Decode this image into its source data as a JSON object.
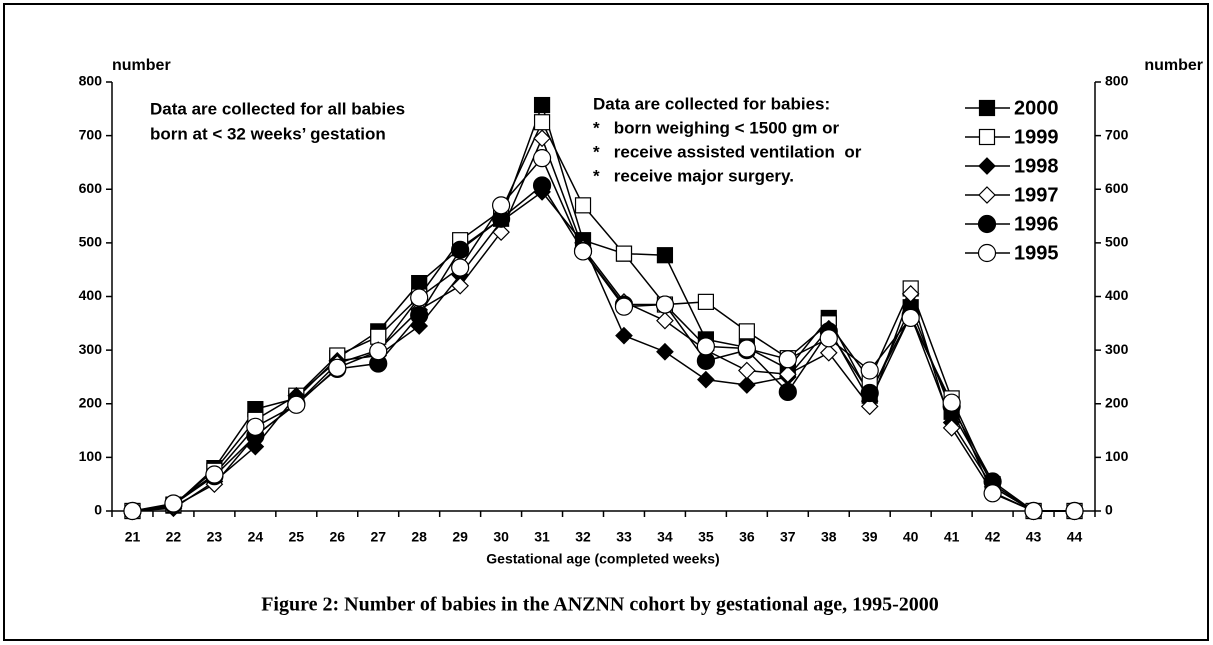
{
  "chart_data": {
    "type": "line",
    "title": "Figure 2: Number of babies in the ANZNN cohort by gestational age, 1995-2000",
    "xlabel": "Gestational age (completed weeks)",
    "ylabel": "number",
    "y2label": "number",
    "annotations": [
      {
        "lines": [
          "Data are collected for all babies",
          "born at < 32 weeks’ gestation"
        ]
      },
      {
        "lines": [
          "Data are collected for babies:",
          "*   born weighing < 1500 gm or",
          "*   receive assisted ventilation  or",
          "*   receive major surgery."
        ]
      }
    ],
    "categories": [
      "21",
      "22",
      "23",
      "24",
      "25",
      "26",
      "27",
      "28",
      "29",
      "30",
      "31",
      "32",
      "33",
      "34",
      "35",
      "36",
      "37",
      "38",
      "39",
      "40",
      "41",
      "42",
      "43",
      "44"
    ],
    "series": [
      {
        "name": "2000",
        "color": "#000000",
        "marker": "square",
        "filled": true,
        "values": [
          0,
          10,
          80,
          190,
          210,
          285,
          335,
          425,
          490,
          545,
          757,
          505,
          480,
          477,
          320,
          305,
          265,
          360,
          215,
          380,
          185,
          50,
          0,
          0
        ]
      },
      {
        "name": "1999",
        "color": "#000000",
        "marker": "square",
        "filled": false,
        "values": [
          0,
          12,
          75,
          170,
          215,
          290,
          325,
          400,
          505,
          560,
          725,
          570,
          480,
          385,
          390,
          335,
          285,
          350,
          245,
          415,
          210,
          45,
          0,
          0
        ]
      },
      {
        "name": "1998",
        "color": "#000000",
        "marker": "diamond",
        "filled": true,
        "values": [
          0,
          5,
          55,
          120,
          215,
          280,
          290,
          345,
          440,
          540,
          595,
          500,
          327,
          297,
          245,
          235,
          250,
          340,
          205,
          365,
          165,
          45,
          0,
          0
        ]
      },
      {
        "name": "1997",
        "color": "#000000",
        "marker": "diamond",
        "filled": false,
        "values": [
          0,
          8,
          50,
          140,
          200,
          275,
          300,
          375,
          420,
          520,
          695,
          490,
          390,
          355,
          300,
          262,
          255,
          295,
          195,
          405,
          155,
          35,
          0,
          0
        ]
      },
      {
        "name": "1996",
        "color": "#000000",
        "marker": "circle",
        "filled": true,
        "values": [
          0,
          12,
          65,
          140,
          200,
          265,
          275,
          365,
          487,
          545,
          607,
          485,
          385,
          385,
          280,
          300,
          222,
          335,
          220,
          365,
          195,
          55,
          0,
          0
        ]
      },
      {
        "name": "1995",
        "color": "#000000",
        "marker": "circle",
        "filled": false,
        "values": [
          0,
          14,
          68,
          157,
          198,
          267,
          298,
          398,
          454,
          570,
          658,
          484,
          381,
          385,
          307,
          303,
          283,
          322,
          262,
          360,
          202,
          33,
          0,
          0
        ]
      }
    ],
    "ylim": [
      0,
      800
    ],
    "yticks": [
      0,
      100,
      200,
      300,
      400,
      500,
      600,
      700,
      800
    ],
    "y2lim": [
      0,
      800
    ],
    "y2ticks": [
      0,
      100,
      200,
      300,
      400,
      500,
      600,
      700,
      800
    ],
    "grid": false,
    "legend": "upper right"
  }
}
